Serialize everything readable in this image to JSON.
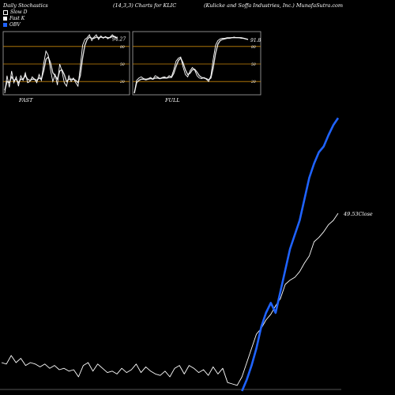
{
  "header": {
    "left": "Daily Stochastics",
    "center": "(14,3,3) Charts for KLIC",
    "right": "(Kulicke  and Soffa Industries, Inc.) MunafaSutra.com"
  },
  "legend": [
    {
      "label": "Slow D",
      "color": "#ffffff"
    },
    {
      "label": "Fast K",
      "color": "#ffffff"
    },
    {
      "label": "OBV",
      "color": "#1f63ff"
    }
  ],
  "colors": {
    "background": "#000000",
    "line": "#ffffff",
    "obv": "#1f63ff",
    "level": "#c8860a",
    "frame": "#aaaaaa"
  },
  "chart_data": [
    {
      "type": "line",
      "title": "FAST",
      "ylim": [
        0,
        100
      ],
      "levels": [
        20,
        50,
        80
      ],
      "level_labels": [
        "20",
        "50",
        "80"
      ],
      "last_value_label": "94.27",
      "x": [
        0,
        1,
        2,
        3,
        4,
        5,
        6,
        7,
        8,
        9,
        10,
        11,
        12,
        13,
        14,
        15,
        16,
        17,
        18,
        19,
        20,
        21,
        22,
        23,
        24,
        25,
        26,
        27,
        28,
        29,
        30,
        31,
        32,
        33,
        34,
        35,
        36,
        37,
        38,
        39,
        40,
        41,
        42,
        43,
        44,
        45,
        46,
        47,
        48,
        49
      ],
      "series": [
        {
          "name": "Fast K",
          "values": [
            0,
            30,
            10,
            38,
            18,
            28,
            12,
            30,
            22,
            35,
            18,
            20,
            28,
            24,
            18,
            32,
            22,
            50,
            72,
            65,
            40,
            20,
            32,
            14,
            50,
            38,
            18,
            12,
            30,
            20,
            26,
            18,
            12,
            45,
            82,
            92,
            95,
            100,
            90,
            96,
            100,
            92,
            98,
            94,
            97,
            93,
            96,
            100,
            96,
            94
          ]
        },
        {
          "name": "Slow D",
          "values": [
            5,
            20,
            18,
            28,
            22,
            24,
            18,
            24,
            24,
            30,
            24,
            22,
            24,
            24,
            22,
            26,
            24,
            38,
            58,
            62,
            52,
            35,
            30,
            24,
            38,
            40,
            32,
            20,
            24,
            24,
            24,
            22,
            18,
            30,
            60,
            82,
            92,
            96,
            94,
            94,
            96,
            95,
            96,
            95,
            96,
            95,
            95,
            97,
            97,
            95
          ]
        }
      ]
    },
    {
      "type": "line",
      "title": "FULL",
      "ylim": [
        0,
        100
      ],
      "levels": [
        20,
        50,
        80
      ],
      "level_labels": [
        "20",
        "50",
        "80"
      ],
      "last_value_label": "91.8",
      "x": [
        0,
        1,
        2,
        3,
        4,
        5,
        6,
        7,
        8,
        9,
        10,
        11,
        12,
        13,
        14,
        15,
        16,
        17,
        18,
        19,
        20,
        21,
        22,
        23,
        24,
        25,
        26,
        27,
        28,
        29,
        30,
        31,
        32,
        33,
        34,
        35,
        36,
        37,
        38,
        39,
        40,
        41,
        42,
        43,
        44,
        45,
        46,
        47,
        48,
        49
      ],
      "series": [
        {
          "name": "Fast K",
          "values": [
            0,
            22,
            26,
            28,
            25,
            24,
            25,
            27,
            24,
            30,
            28,
            25,
            27,
            28,
            26,
            30,
            28,
            40,
            55,
            60,
            62,
            45,
            32,
            28,
            38,
            44,
            40,
            30,
            26,
            25,
            27,
            24,
            20,
            30,
            58,
            82,
            90,
            93,
            94,
            94,
            95,
            95,
            95,
            96,
            95,
            95,
            94,
            94,
            93,
            92
          ]
        },
        {
          "name": "Slow D",
          "values": [
            0,
            18,
            22,
            24,
            24,
            23,
            24,
            25,
            24,
            26,
            26,
            25,
            26,
            26,
            26,
            27,
            27,
            34,
            46,
            56,
            60,
            52,
            40,
            32,
            34,
            40,
            41,
            36,
            30,
            27,
            26,
            25,
            23,
            26,
            44,
            68,
            84,
            90,
            92,
            93,
            94,
            94,
            95,
            95,
            95,
            95,
            95,
            94,
            93,
            92
          ]
        }
      ]
    },
    {
      "type": "line",
      "x": [
        0,
        1,
        2,
        3,
        4,
        5,
        6,
        7,
        8,
        9,
        10,
        11,
        12,
        13,
        14,
        15,
        16,
        17,
        18,
        19,
        20,
        21,
        22,
        23,
        24,
        25,
        26,
        27,
        28,
        29,
        30,
        31,
        32,
        33,
        34,
        35,
        36,
        37,
        38,
        39,
        40,
        41,
        42,
        43,
        44,
        45,
        46,
        47,
        48,
        49,
        50,
        51,
        52,
        53,
        54,
        55,
        56,
        57,
        58,
        59,
        60,
        61,
        62,
        63,
        64,
        65,
        66,
        67,
        68,
        69,
        70
      ],
      "series": [
        {
          "name": "Close",
          "last_label": "49.53Close",
          "values": [
            20,
            19,
            25,
            20,
            23,
            18,
            20,
            19,
            17,
            19,
            16,
            18,
            15,
            16,
            14,
            15,
            10,
            18,
            20,
            14,
            19,
            16,
            13,
            14,
            12,
            16,
            13,
            15,
            19,
            13,
            17,
            14,
            12,
            11,
            14,
            10,
            16,
            18,
            12,
            18,
            16,
            13,
            15,
            11,
            17,
            12,
            16,
            6,
            5,
            4,
            10,
            20,
            30,
            40,
            44,
            50,
            54,
            60,
            65,
            75,
            78,
            80,
            84,
            90,
            95,
            105,
            108,
            112,
            117,
            120,
            125
          ]
        },
        {
          "name": "OBV",
          "values": [
            null,
            null,
            null,
            null,
            null,
            null,
            null,
            null,
            null,
            null,
            null,
            null,
            null,
            null,
            null,
            null,
            null,
            null,
            null,
            null,
            null,
            null,
            null,
            null,
            null,
            null,
            null,
            null,
            null,
            null,
            null,
            null,
            null,
            null,
            null,
            null,
            null,
            null,
            null,
            null,
            null,
            null,
            null,
            null,
            null,
            null,
            null,
            null,
            null,
            null,
            0,
            8,
            18,
            30,
            45,
            55,
            62,
            55,
            70,
            85,
            100,
            110,
            120,
            135,
            150,
            160,
            168,
            172,
            180,
            187,
            192
          ]
        }
      ],
      "ylim": [
        0,
        200
      ]
    }
  ]
}
